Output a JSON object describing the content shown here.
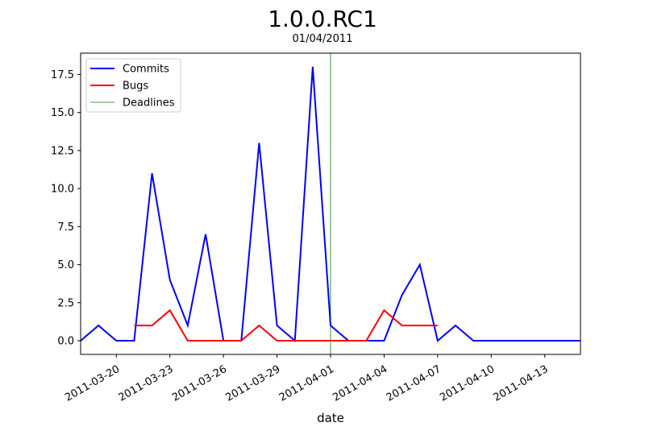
{
  "chart_data": {
    "type": "line",
    "title": "1.0.0.RC1",
    "subtitle": "01/04/2011",
    "xlabel": "date",
    "ylabel": "",
    "xlim": [
      "2011-03-18",
      "2011-04-15"
    ],
    "ylim": [
      -0.9,
      18.9
    ],
    "grid": false,
    "legend_position": "top-left",
    "x_ticks": [
      "2011-03-20",
      "2011-03-23",
      "2011-03-26",
      "2011-03-29",
      "2011-04-01",
      "2011-04-04",
      "2011-04-07",
      "2011-04-10",
      "2011-04-13"
    ],
    "y_ticks": [
      "0.0",
      "2.5",
      "5.0",
      "7.5",
      "10.0",
      "12.5",
      "15.0",
      "17.5"
    ],
    "series": [
      {
        "name": "Commits",
        "color": "#0000ff",
        "points": [
          [
            "2011-03-18",
            0
          ],
          [
            "2011-03-19",
            1
          ],
          [
            "2011-03-20",
            0
          ],
          [
            "2011-03-21",
            0
          ],
          [
            "2011-03-22",
            11
          ],
          [
            "2011-03-23",
            4
          ],
          [
            "2011-03-24",
            1
          ],
          [
            "2011-03-25",
            7
          ],
          [
            "2011-03-26",
            0
          ],
          [
            "2011-03-27",
            0
          ],
          [
            "2011-03-28",
            13
          ],
          [
            "2011-03-29",
            1
          ],
          [
            "2011-03-30",
            0
          ],
          [
            "2011-03-31",
            18
          ],
          [
            "2011-04-01",
            1
          ],
          [
            "2011-04-02",
            0
          ],
          [
            "2011-04-03",
            0
          ],
          [
            "2011-04-04",
            0
          ],
          [
            "2011-04-05",
            3
          ],
          [
            "2011-04-06",
            5
          ],
          [
            "2011-04-07",
            0
          ],
          [
            "2011-04-08",
            1
          ],
          [
            "2011-04-09",
            0
          ],
          [
            "2011-04-10",
            0
          ],
          [
            "2011-04-11",
            0
          ],
          [
            "2011-04-12",
            0
          ],
          [
            "2011-04-13",
            0
          ],
          [
            "2011-04-14",
            0
          ],
          [
            "2011-04-15",
            0
          ]
        ]
      },
      {
        "name": "Bugs",
        "color": "#ff0000",
        "points": [
          [
            "2011-03-21",
            1
          ],
          [
            "2011-03-22",
            1
          ],
          [
            "2011-03-23",
            2
          ],
          [
            "2011-03-24",
            0
          ],
          [
            "2011-03-25",
            0
          ],
          [
            "2011-03-26",
            0
          ],
          [
            "2011-03-27",
            0
          ],
          [
            "2011-03-28",
            1
          ],
          [
            "2011-03-29",
            0
          ],
          [
            "2011-03-30",
            0
          ],
          [
            "2011-03-31",
            0
          ],
          [
            "2011-04-01",
            0
          ],
          [
            "2011-04-02",
            0
          ],
          [
            "2011-04-03",
            0
          ],
          [
            "2011-04-04",
            2
          ],
          [
            "2011-04-05",
            1
          ],
          [
            "2011-04-06",
            1
          ],
          [
            "2011-04-07",
            1
          ]
        ]
      }
    ],
    "deadlines": {
      "name": "Deadlines",
      "color": "#008000",
      "dates": [
        "2011-04-01"
      ]
    }
  }
}
